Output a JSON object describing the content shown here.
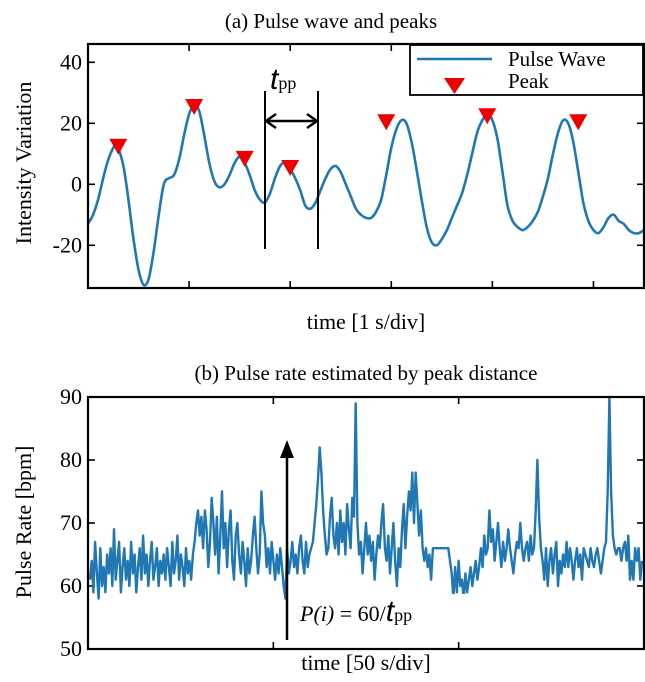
{
  "colors": {
    "line": "#1f77b4",
    "marker": "#ee0000",
    "axis": "#000000"
  },
  "chart_data": [
    {
      "type": "line",
      "title": "(a) Pulse wave and peaks",
      "xlabel": "time [1 s/div]",
      "ylabel": "Intensity Variation",
      "ylim": [
        -34,
        46
      ],
      "yticks": [
        {
          "value": 40,
          "label": "40"
        },
        {
          "value": 20,
          "label": "20"
        },
        {
          "value": 0,
          "label": "0"
        },
        {
          "value": -20,
          "label": "-20"
        }
      ],
      "legend": {
        "position": "top-right",
        "entries": [
          "Pulse Wave",
          "Peak"
        ]
      },
      "annotation": {
        "symbol": "t",
        "subscript": "pp"
      },
      "series": [
        {
          "name": "Pulse Wave",
          "x": [
            0,
            0.05,
            0.1,
            0.15,
            0.2,
            0.25,
            0.28,
            0.3,
            0.35,
            0.4,
            0.45,
            0.5,
            0.55,
            0.6,
            0.65,
            0.7,
            0.75,
            0.8,
            0.85,
            0.9,
            0.95,
            1.0,
            1.05,
            1.1,
            1.15,
            1.2,
            1.25,
            1.3,
            1.35,
            1.4,
            1.45,
            1.5,
            1.55,
            1.6,
            1.65,
            1.7,
            1.75,
            1.8,
            1.85,
            1.9,
            1.95,
            2.0,
            2.05,
            2.1,
            2.15,
            2.2,
            2.25,
            2.3,
            2.35,
            2.4,
            2.45,
            2.5,
            2.55,
            2.6,
            2.65,
            2.7,
            2.75,
            2.8,
            2.85,
            2.9,
            2.95,
            3.0,
            3.05,
            3.1,
            3.15,
            3.2,
            3.25,
            3.3,
            3.35,
            3.4,
            3.45,
            3.5,
            3.55,
            3.6,
            3.65,
            3.7,
            3.75,
            3.8,
            3.85,
            3.9,
            3.95,
            4.0,
            4.05,
            4.1,
            4.15,
            4.2,
            4.25,
            4.3,
            4.35,
            4.4,
            4.45,
            4.5,
            4.55,
            4.6,
            4.65,
            4.7,
            4.75,
            4.8,
            4.85,
            4.9,
            4.95,
            5.0,
            5.05,
            5.1,
            5.15,
            5.2,
            5.25,
            5.3,
            5.35,
            5.4,
            5.45,
            5.5
          ],
          "y": [
            -13,
            -10,
            -5,
            2,
            8,
            12,
            13,
            12,
            6,
            -5,
            -18,
            -28,
            -33,
            -31,
            -22,
            -10,
            0,
            2,
            3,
            8,
            16,
            23,
            26,
            24,
            16,
            7,
            1,
            -1,
            0,
            3,
            7,
            9,
            7,
            3,
            -2,
            -5,
            -6,
            -3,
            2,
            6,
            7,
            5,
            2,
            -2,
            -7,
            -8,
            -6,
            -2,
            2,
            5,
            6,
            4,
            0,
            -4,
            -8,
            -10,
            -11,
            -11,
            -9,
            -5,
            3,
            12,
            18,
            21,
            20,
            14,
            5,
            -5,
            -14,
            -19,
            -20,
            -18,
            -15,
            -11,
            -7,
            -3,
            3,
            10,
            17,
            21,
            23,
            21,
            15,
            4,
            -7,
            -12,
            -14,
            -15,
            -14,
            -12,
            -9,
            -4,
            2,
            10,
            17,
            21,
            20,
            14,
            4,
            -6,
            -12,
            -15,
            -16,
            -14,
            -11,
            -10,
            -12,
            -13,
            -15,
            -16,
            -16,
            -15
          ]
        },
        {
          "name": "Peak",
          "x": [
            0.3,
            1.05,
            1.55,
            2.0,
            2.95,
            3.95,
            4.85
          ],
          "y": [
            12,
            25,
            8,
            5,
            20,
            22,
            20
          ]
        }
      ]
    },
    {
      "type": "line",
      "title": "(b) Pulse rate estimated by peak distance",
      "xlabel": "time [50 s/div]",
      "ylabel": "Pulse Rate [bpm]",
      "ylim": [
        50,
        90
      ],
      "yticks": [
        {
          "value": 90,
          "label": "90"
        },
        {
          "value": 80,
          "label": "80"
        },
        {
          "value": 70,
          "label": "70"
        },
        {
          "value": 60,
          "label": "60"
        },
        {
          "value": 50,
          "label": "50"
        }
      ],
      "annotation": {
        "lhs": "P(i)",
        "mid": " = 60/",
        "symbol": "t",
        "subscript": "pp"
      },
      "series": [
        {
          "name": "Pulse Rate",
          "y": [
            61,
            64,
            59,
            67,
            62,
            58,
            66,
            60,
            63,
            59,
            65,
            62,
            66,
            60,
            69,
            61,
            64,
            67,
            59,
            63,
            66,
            61,
            64,
            60,
            67,
            62,
            65,
            59,
            63,
            66,
            61,
            68,
            62,
            65,
            60,
            64,
            67,
            61,
            63,
            66,
            60,
            64,
            62,
            65,
            61,
            66,
            63,
            60,
            67,
            62,
            64,
            68,
            61,
            65,
            63,
            60,
            66,
            62,
            64,
            61,
            65,
            67,
            70,
            72,
            68,
            71,
            66,
            72,
            69,
            63,
            67,
            74,
            70,
            65,
            71,
            62,
            68,
            75,
            66,
            70,
            63,
            69,
            72,
            64,
            61,
            68,
            70,
            65,
            62,
            67,
            64,
            60,
            66,
            62,
            64,
            68,
            71,
            66,
            62,
            65,
            75,
            70,
            68,
            63,
            66,
            62,
            67,
            64,
            61,
            65,
            62,
            66,
            63,
            60,
            58,
            66,
            62,
            64,
            67,
            63,
            65,
            62,
            66,
            68,
            64,
            62,
            67,
            63,
            65,
            66,
            67,
            70,
            73,
            77,
            82,
            78,
            72,
            68,
            65,
            66,
            71,
            74,
            68,
            66,
            70,
            65,
            72,
            67,
            70,
            65,
            73,
            69,
            66,
            74,
            71,
            89,
            70,
            65,
            67,
            62,
            66,
            70,
            65,
            68,
            64,
            67,
            61,
            65,
            68,
            66,
            70,
            73,
            66,
            64,
            68,
            62,
            66,
            70,
            64,
            60,
            66,
            63,
            69,
            73,
            66,
            71,
            75,
            72,
            78,
            70,
            78,
            73,
            68,
            72,
            66,
            64,
            66,
            63,
            65,
            61,
            66,
            66,
            66,
            66,
            66,
            66,
            66,
            66,
            66,
            66,
            64,
            62,
            58,
            63,
            59,
            64,
            60,
            61,
            58,
            62,
            59,
            61,
            63,
            60,
            62,
            64,
            61,
            63,
            66,
            63,
            68,
            65,
            66,
            72,
            67,
            69,
            64,
            67,
            70,
            66,
            63,
            67,
            64,
            66,
            69,
            66,
            64,
            62,
            65,
            67,
            66,
            70,
            66,
            64,
            66,
            67,
            64,
            68,
            65,
            66,
            72,
            80,
            71,
            66,
            64,
            61,
            66,
            60,
            64,
            66,
            62,
            65,
            67,
            60,
            64,
            62,
            65,
            63,
            67,
            63,
            66,
            64,
            61,
            64,
            66,
            63,
            65,
            61,
            66,
            65,
            64,
            63,
            66,
            64,
            63,
            65,
            66,
            64,
            62,
            64,
            66,
            67,
            75,
            90,
            75,
            68,
            66,
            65,
            66,
            66,
            64,
            66,
            67,
            64,
            68,
            61,
            64,
            61,
            66,
            64,
            66,
            61,
            64
          ]
        }
      ]
    }
  ]
}
